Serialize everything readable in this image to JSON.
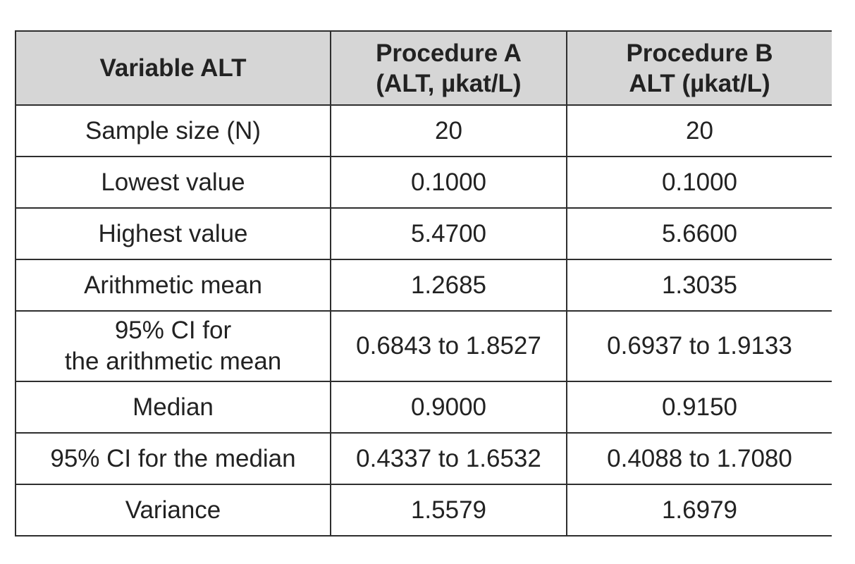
{
  "table": {
    "headers": [
      {
        "lines": [
          "Variable ALT"
        ]
      },
      {
        "lines": [
          "Procedure A",
          "(ALT, µkat/L)"
        ]
      },
      {
        "lines": [
          "Procedure B",
          "ALT (µkat/L)"
        ]
      }
    ],
    "rows": [
      {
        "label_lines": [
          "Sample size (N)"
        ],
        "a": "20",
        "b": "20"
      },
      {
        "label_lines": [
          "Lowest value"
        ],
        "a": "0.1000",
        "b": "0.1000"
      },
      {
        "label_lines": [
          "Highest value"
        ],
        "a": "5.4700",
        "b": "5.6600"
      },
      {
        "label_lines": [
          "Arithmetic mean"
        ],
        "a": "1.2685",
        "b": "1.3035"
      },
      {
        "label_lines": [
          "95% CI for",
          "the arithmetic mean"
        ],
        "a": "0.6843 to 1.8527",
        "b": "0.6937 to 1.9133"
      },
      {
        "label_lines": [
          "Median"
        ],
        "a": "0.9000",
        "b": "0.9150"
      },
      {
        "label_lines": [
          "95% CI for the median"
        ],
        "a": "0.4337 to 1.6532",
        "b": "0.4088 to 1.7080"
      },
      {
        "label_lines": [
          "Variance"
        ],
        "a": "1.5579",
        "b": "1.6979"
      }
    ]
  }
}
